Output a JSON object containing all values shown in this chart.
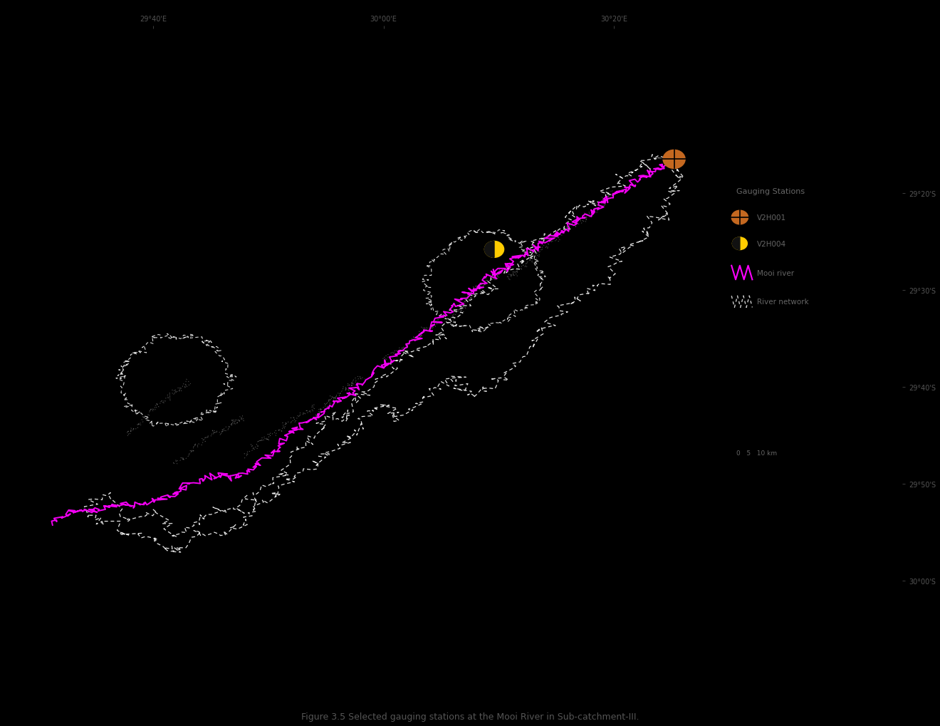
{
  "background_color": "#000000",
  "title": "Figure 3.5 Selected gauging stations at the Mooi River in Sub-catchment-III.",
  "title_color": "#555555",
  "title_fontsize": 9,
  "legend_title": "Gauging Stations",
  "legend_title_color": "#666666",
  "x_tick_labels": [
    "29°40'E",
    "30°00'E",
    "30°20'E"
  ],
  "y_tick_labels": [
    "29°20'S",
    "29°30'S",
    "29°40'S",
    "29°50'S",
    "30°00'S"
  ],
  "axis_label_color": "#555555",
  "axis_label_fontsize": 7,
  "catchment_boundary_color": "#ffffff",
  "inner_boundary_color": "#ffffff",
  "river_color": "#ff00ff",
  "river_network_color": "#cccccc",
  "station_V2H001_color": "#c46820",
  "station_V2H004_color": "#ffcc00",
  "legend_text_color": "#666666",
  "fig_width": 13.2,
  "fig_height": 10.2,
  "xlim": [
    29.5,
    30.75
  ],
  "ylim": [
    -30.15,
    -29.05
  ]
}
